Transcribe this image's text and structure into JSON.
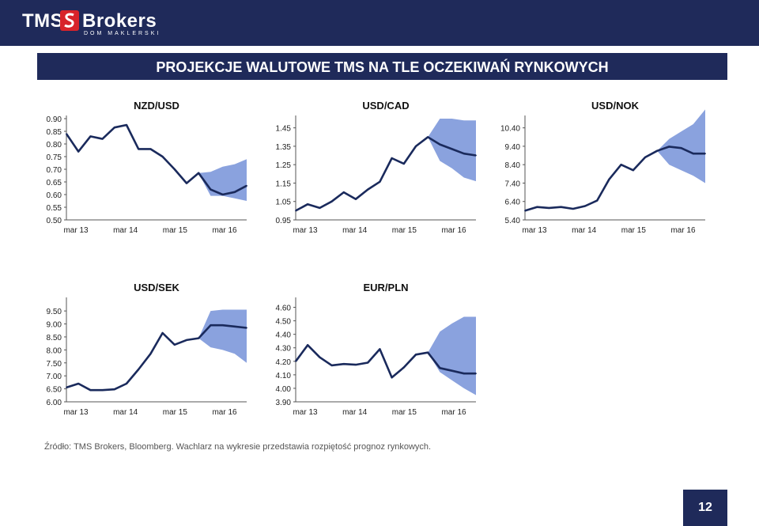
{
  "header": {
    "logo_main": "TMS",
    "logo_brand": "Brokers",
    "logo_sub": "DOM MAKLERSKI"
  },
  "title": "PROJEKCJE WALUTOWE TMS NA TLE OCZEKIWAŃ RYNKOWYCH",
  "colors": {
    "dark": "#1f2a5a",
    "band": "#8aa2de",
    "line": "#1a2a5c"
  },
  "chart_data": [
    {
      "type": "line",
      "title": "NZD/USD",
      "x_labels": [
        "mar 13",
        "mar 14",
        "mar 15",
        "mar 16"
      ],
      "y_ticks": [
        "0.50",
        "0.55",
        "0.60",
        "0.65",
        "0.70",
        "0.75",
        "0.80",
        "0.85",
        "0.90"
      ],
      "ylim": [
        0.5,
        0.9
      ],
      "values": [
        0.84,
        0.77,
        0.83,
        0.82,
        0.865,
        0.875,
        0.78,
        0.78,
        0.75,
        0.7,
        0.645,
        0.685,
        0.62,
        0.6,
        0.61,
        0.635
      ],
      "forecast_band": {
        "start_index": 11,
        "upper": [
          0.685,
          0.69,
          0.71,
          0.72,
          0.74
        ],
        "lower": [
          0.685,
          0.595,
          0.595,
          0.585,
          0.575
        ]
      }
    },
    {
      "type": "line",
      "title": "USD/CAD",
      "x_labels": [
        "mar 13",
        "mar 14",
        "mar 15",
        "mar 16"
      ],
      "y_ticks": [
        "0.95",
        "1.05",
        "1.15",
        "1.25",
        "1.35",
        "1.45"
      ],
      "ylim": [
        0.95,
        1.5
      ],
      "values": [
        1.0,
        1.035,
        1.015,
        1.05,
        1.1,
        1.063,
        1.115,
        1.157,
        1.285,
        1.255,
        1.35,
        1.4,
        1.36,
        1.335,
        1.31,
        1.3
      ],
      "forecast_band": {
        "start_index": 11,
        "upper": [
          1.4,
          1.5,
          1.5,
          1.49,
          1.49
        ],
        "lower": [
          1.4,
          1.27,
          1.23,
          1.18,
          1.16
        ]
      }
    },
    {
      "type": "line",
      "title": "USD/NOK",
      "x_labels": [
        "mar 13",
        "mar 14",
        "mar 15",
        "mar 16"
      ],
      "y_ticks": [
        "5.40",
        "6.40",
        "7.40",
        "8.40",
        "9.40",
        "10.40"
      ],
      "ylim": [
        5.4,
        10.9
      ],
      "values": [
        5.9,
        6.1,
        6.05,
        6.1,
        6.0,
        6.15,
        6.45,
        7.6,
        8.4,
        8.1,
        8.8,
        9.15,
        9.38,
        9.3,
        9.0,
        9.0
      ],
      "forecast_band": {
        "start_index": 11,
        "upper": [
          9.15,
          9.8,
          10.2,
          10.6,
          11.4
        ],
        "lower": [
          9.15,
          8.4,
          8.1,
          7.8,
          7.4
        ]
      }
    },
    {
      "type": "line",
      "title": "USD/SEK",
      "x_labels": [
        "mar 13",
        "mar 14",
        "mar 15",
        "mar 16"
      ],
      "y_ticks": [
        "6.00",
        "6.50",
        "7.00",
        "7.50",
        "8.00",
        "8.50",
        "9.00",
        "9.50"
      ],
      "ylim": [
        6.0,
        9.9
      ],
      "values": [
        6.55,
        6.7,
        6.45,
        6.45,
        6.48,
        6.7,
        7.25,
        7.85,
        8.65,
        8.2,
        8.38,
        8.45,
        8.95,
        8.95,
        8.9,
        8.85
      ],
      "forecast_band": {
        "start_index": 11,
        "upper": [
          8.45,
          9.5,
          9.55,
          9.55,
          9.55
        ],
        "lower": [
          8.45,
          8.1,
          8.0,
          7.85,
          7.5
        ]
      }
    },
    {
      "type": "line",
      "title": "EUR/PLN",
      "x_labels": [
        "mar 13",
        "mar 14",
        "mar 15",
        "mar 16"
      ],
      "y_ticks": [
        "3.90",
        "4.00",
        "4.10",
        "4.20",
        "4.30",
        "4.40",
        "4.50",
        "4.60"
      ],
      "ylim": [
        3.9,
        4.65
      ],
      "values": [
        4.2,
        4.32,
        4.23,
        4.17,
        4.18,
        4.175,
        4.19,
        4.29,
        4.08,
        4.155,
        4.25,
        4.265,
        4.15,
        4.13,
        4.11,
        4.11
      ],
      "forecast_band": {
        "start_index": 11,
        "upper": [
          4.265,
          4.42,
          4.48,
          4.53,
          4.53
        ],
        "lower": [
          4.265,
          4.12,
          4.06,
          4.0,
          3.95
        ]
      }
    }
  ],
  "source_note": "Źródło: TMS Brokers, Bloomberg. Wachlarz na wykresie przedstawia rozpiętość prognoz  rynkowych.",
  "page_number": "12"
}
